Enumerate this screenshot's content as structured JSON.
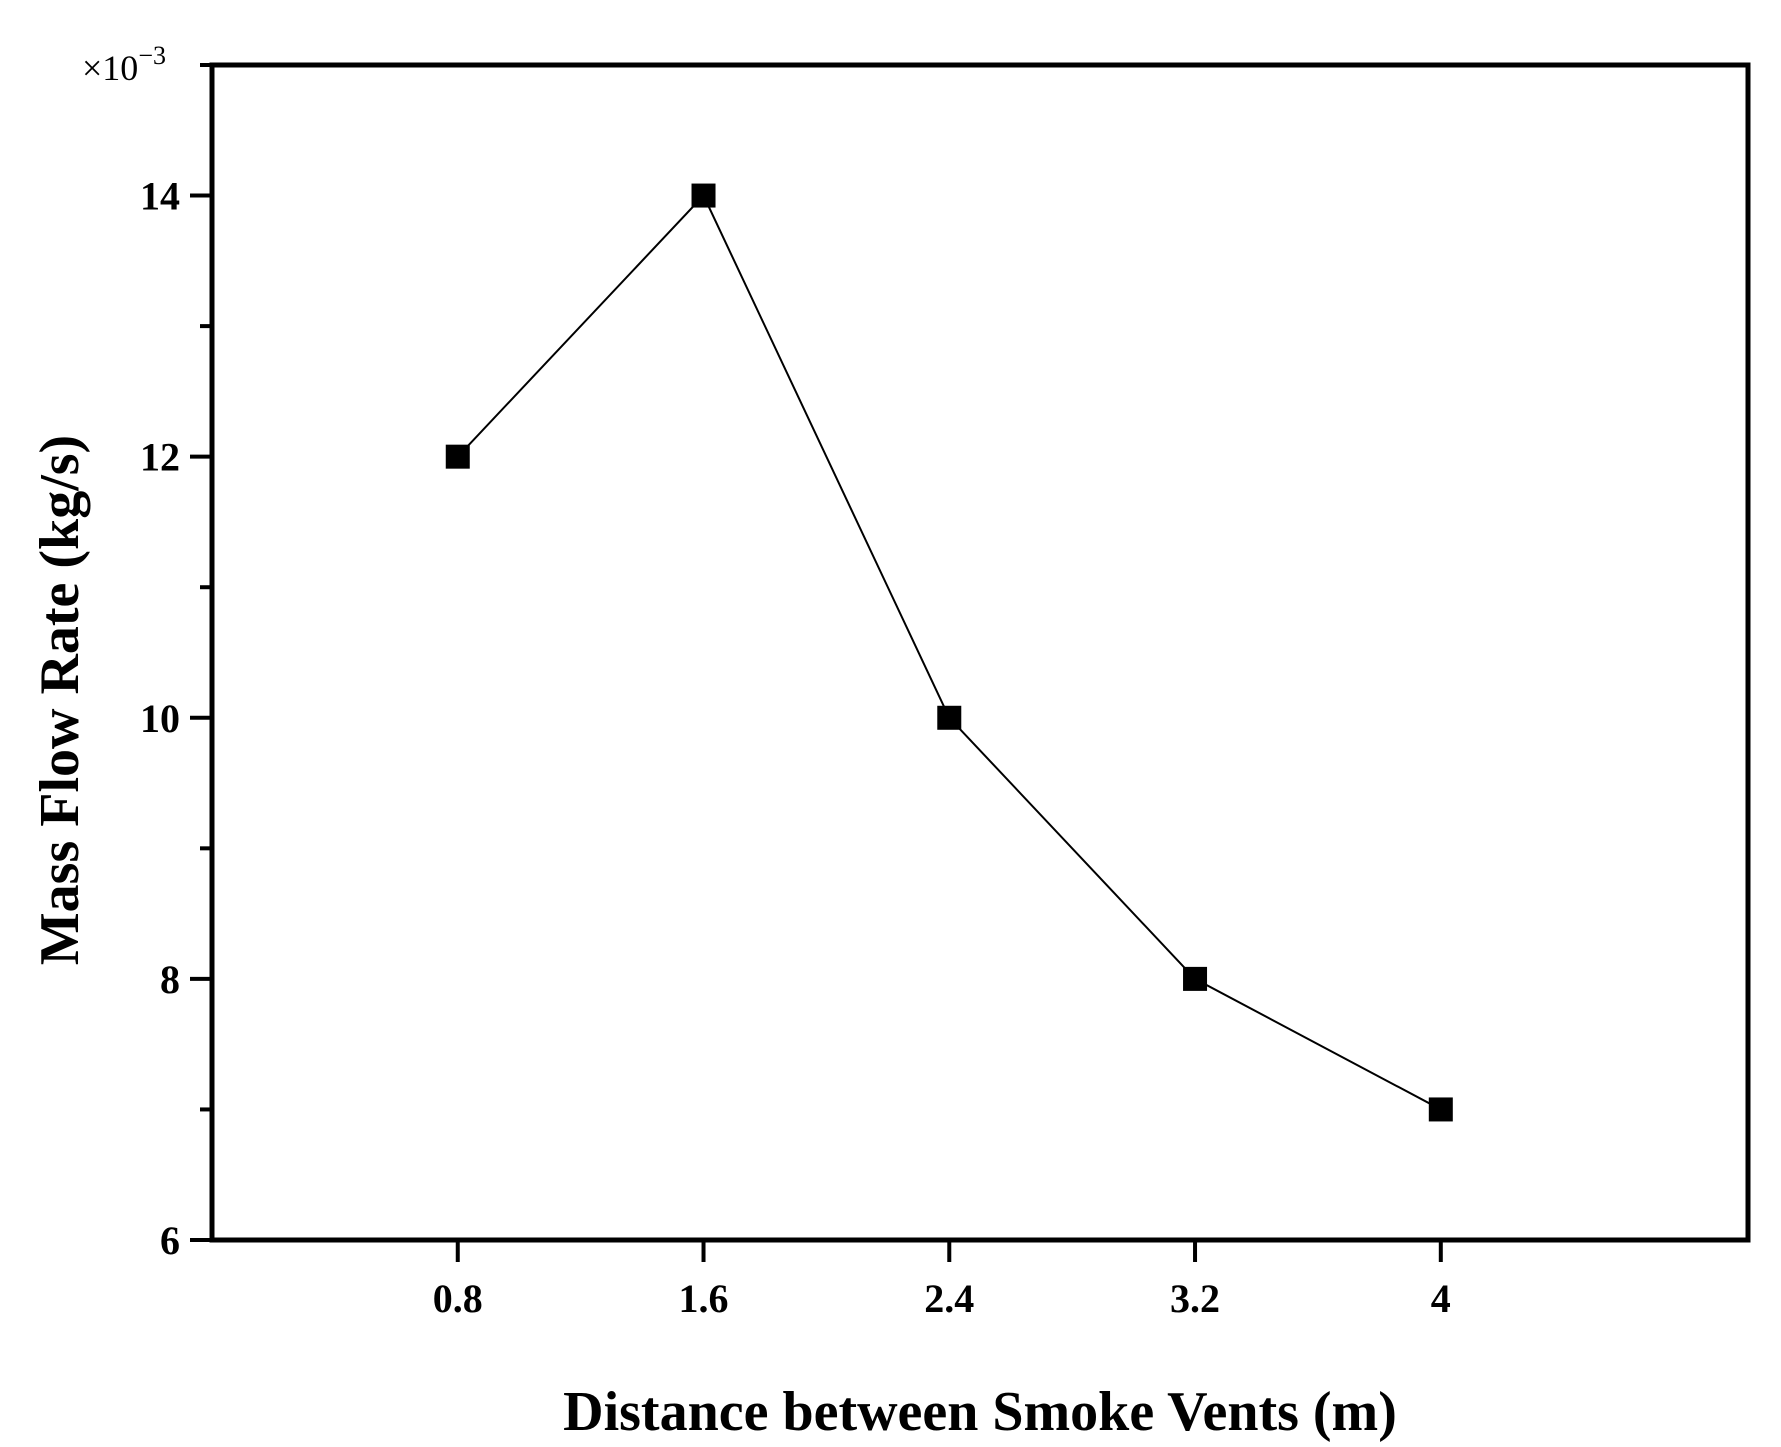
{
  "chart_data": {
    "type": "line",
    "xlabel": "Distance between Smoke Vents (m)",
    "ylabel": "Mass Flow Rate (kg/s)",
    "y_multiplier": "×10",
    "y_multiplier_exp": "−3",
    "x": [
      0.8,
      1.6,
      2.4,
      3.2,
      4
    ],
    "x_tick_labels": [
      "0.8",
      "1.6",
      "2.4",
      "3.2",
      "4"
    ],
    "y_tick_values": [
      6,
      8,
      10,
      12,
      14
    ],
    "y_tick_labels": [
      "6",
      "8",
      "10",
      "12",
      "14"
    ],
    "series": [
      {
        "values": [
          12,
          14,
          10,
          8,
          7
        ],
        "marker": "square",
        "color": "#000000"
      }
    ],
    "xlim": [
      0,
      5
    ],
    "ylim": [
      6,
      15
    ],
    "grid": false,
    "legend": "none"
  }
}
